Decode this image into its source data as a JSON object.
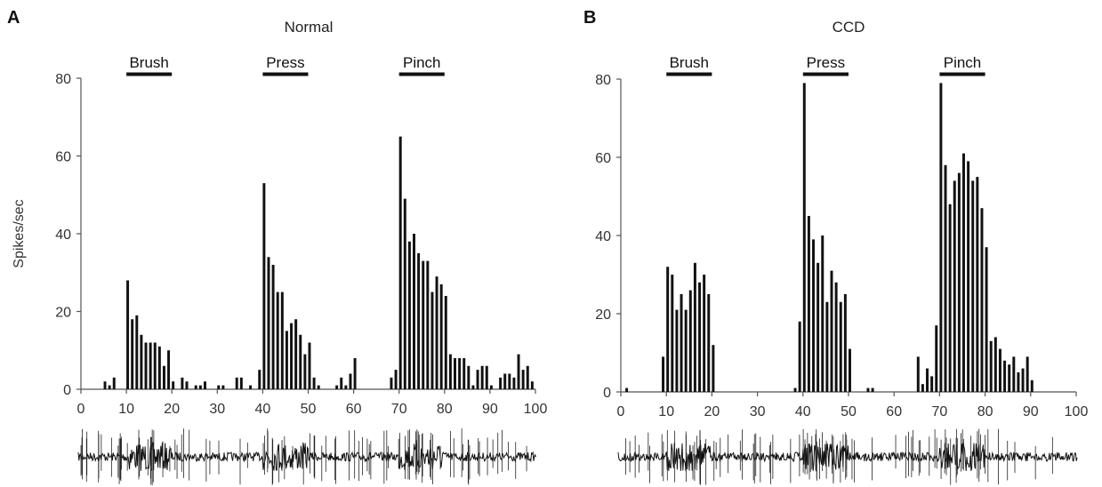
{
  "figure": {
    "panels": [
      {
        "letter": "A",
        "title": "Normal"
      },
      {
        "letter": "B",
        "title": "CCD"
      }
    ],
    "ylabel": "Spikes/sec"
  },
  "chart_data": [
    {
      "type": "bar",
      "panel": "A",
      "title": "Normal",
      "xlabel": "",
      "ylabel": "Spikes/sec",
      "xlim": [
        0,
        100
      ],
      "ylim": [
        0,
        80
      ],
      "xticks": [
        0,
        10,
        20,
        30,
        40,
        50,
        60,
        70,
        80,
        90,
        100
      ],
      "yticks": [
        0,
        20,
        40,
        60,
        80
      ],
      "stimuli": [
        {
          "label": "Brush",
          "start": 10,
          "end": 20
        },
        {
          "label": "Press",
          "start": 40,
          "end": 50
        },
        {
          "label": "Pinch",
          "start": 70,
          "end": 80
        }
      ],
      "x": [
        5,
        6,
        7,
        10,
        11,
        12,
        13,
        14,
        15,
        16,
        17,
        18,
        19,
        20,
        22,
        23,
        25,
        26,
        27,
        30,
        31,
        34,
        35,
        37,
        39,
        40,
        41,
        42,
        43,
        44,
        45,
        46,
        47,
        48,
        49,
        50,
        51,
        52,
        56,
        57,
        58,
        59,
        60,
        68,
        69,
        70,
        71,
        72,
        73,
        74,
        75,
        76,
        77,
        78,
        79,
        80,
        81,
        82,
        83,
        84,
        85,
        86,
        87,
        88,
        89,
        90,
        92,
        93,
        94,
        95,
        96,
        97,
        98,
        99
      ],
      "values": [
        2,
        1,
        3,
        28,
        18,
        19,
        14,
        12,
        12,
        12,
        11,
        6,
        10,
        2,
        3,
        2,
        1,
        1,
        2,
        1,
        1,
        3,
        3,
        1,
        5,
        53,
        34,
        32,
        25,
        25,
        15,
        17,
        18,
        14,
        9,
        12,
        3,
        1,
        1,
        3,
        1,
        4,
        8,
        3,
        5,
        65,
        49,
        38,
        40,
        35,
        33,
        33,
        25,
        29,
        27,
        24,
        9,
        8,
        8,
        8,
        6,
        1,
        5,
        6,
        6,
        1,
        3,
        4,
        4,
        3,
        9,
        5,
        6,
        2
      ]
    },
    {
      "type": "bar",
      "panel": "B",
      "title": "CCD",
      "xlabel": "",
      "ylabel": "",
      "xlim": [
        0,
        100
      ],
      "ylim": [
        0,
        80
      ],
      "xticks": [
        0,
        10,
        20,
        30,
        40,
        50,
        60,
        70,
        80,
        90,
        100
      ],
      "yticks": [
        0,
        20,
        40,
        60,
        80
      ],
      "stimuli": [
        {
          "label": "Brush",
          "start": 10,
          "end": 20
        },
        {
          "label": "Press",
          "start": 40,
          "end": 50
        },
        {
          "label": "Pinch",
          "start": 70,
          "end": 80
        }
      ],
      "x": [
        1,
        9,
        10,
        11,
        12,
        13,
        14,
        15,
        16,
        17,
        18,
        19,
        20,
        38,
        39,
        40,
        41,
        42,
        43,
        44,
        45,
        46,
        47,
        48,
        49,
        50,
        54,
        55,
        65,
        66,
        67,
        68,
        69,
        70,
        71,
        72,
        73,
        74,
        75,
        76,
        77,
        78,
        79,
        80,
        81,
        82,
        83,
        84,
        85,
        86,
        87,
        88,
        89,
        90
      ],
      "values": [
        1,
        9,
        32,
        30,
        21,
        25,
        21,
        26,
        33,
        28,
        30,
        25,
        12,
        1,
        18,
        79,
        45,
        39,
        33,
        40,
        23,
        31,
        28,
        23,
        25,
        11,
        1,
        1,
        9,
        2,
        6,
        4,
        17,
        79,
        58,
        48,
        54,
        56,
        61,
        59,
        54,
        55,
        47,
        37,
        13,
        14,
        11,
        8,
        7,
        9,
        5,
        6,
        9,
        3
      ]
    }
  ]
}
